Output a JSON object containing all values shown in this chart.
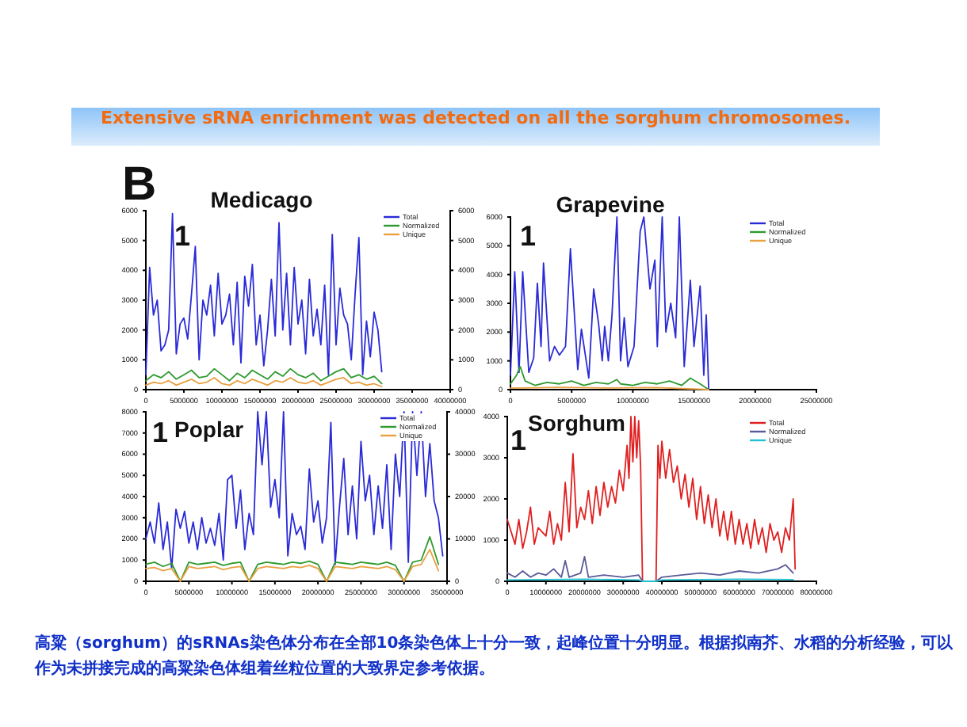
{
  "chart_data": [
    {
      "type": "other",
      "title": "Extensive sRNA enrichment was detected on all the sorghum chromosomes.",
      "annotations": [
        "B",
        "高粱（sorghum）的sRNAs染色体分布在全部10条染色体上十分一致，起峰位置十分明显。根据拟南芥、水稻的分析经验，可以作为未拼接完成的高粱染色体组着丝粒位置的大致界定参考依据。"
      ]
    },
    {
      "type": "line",
      "title": "Medicago",
      "annotations": [
        "1"
      ],
      "legend": "top right",
      "xlim": [
        0,
        40000000
      ],
      "xticks": [
        0,
        5000000,
        10000000,
        15000000,
        20000000,
        25000000,
        30000000,
        35000000,
        40000000
      ],
      "ylim": [
        0,
        6000
      ],
      "yticks": [
        0,
        1000,
        2000,
        3000,
        4000,
        5000,
        6000
      ],
      "y2lim": [
        0,
        6000
      ],
      "y2ticks": [
        0,
        1000,
        2000,
        3000,
        4000,
        5000,
        6000
      ],
      "series": [
        {
          "name": "Total",
          "color": "#2a2ad8",
          "x": [
            0,
            500000,
            1000000,
            1500000,
            2000000,
            2500000,
            3000000,
            3500000,
            4000000,
            4500000,
            5000000,
            5500000,
            6000000,
            6500000,
            7000000,
            7500000,
            8000000,
            8500000,
            9000000,
            9500000,
            10000000,
            10500000,
            11000000,
            11500000,
            12000000,
            12500000,
            13000000,
            13500000,
            14000000,
            14500000,
            15000000,
            15500000,
            16000000,
            16500000,
            17000000,
            17500000,
            18000000,
            18500000,
            19000000,
            19500000,
            20000000,
            20500000,
            21000000,
            21500000,
            22000000,
            22500000,
            23000000,
            23500000,
            24000000,
            24500000,
            25000000,
            25500000,
            26000000,
            26500000,
            27000000,
            27500000,
            28000000,
            28500000,
            29000000,
            29500000,
            30000000,
            30500000,
            31000000
          ],
          "values": [
            500,
            4100,
            2500,
            3000,
            1300,
            1500,
            2000,
            5900,
            1200,
            2200,
            2400,
            1700,
            3200,
            4800,
            1000,
            3000,
            2500,
            3500,
            1800,
            3900,
            2200,
            2500,
            3200,
            1500,
            3600,
            900,
            3800,
            2800,
            4200,
            1500,
            2500,
            800,
            2000,
            3700,
            1800,
            5600,
            2000,
            3900,
            1500,
            4100,
            2200,
            3000,
            1200,
            3700,
            1800,
            2700,
            1500,
            3500,
            500,
            5200,
            1500,
            3400,
            2500,
            2200,
            1000,
            3200,
            5100,
            500,
            2300,
            1100,
            2600,
            2000,
            600
          ]
        },
        {
          "name": "Normalized",
          "color": "#2e9a2e",
          "x": [
            0,
            1000000,
            2000000,
            3000000,
            4000000,
            5000000,
            6000000,
            7000000,
            8000000,
            9000000,
            10000000,
            11000000,
            12000000,
            13000000,
            14000000,
            15000000,
            16000000,
            17000000,
            18000000,
            19000000,
            20000000,
            21000000,
            22000000,
            23000000,
            24000000,
            25000000,
            26000000,
            27000000,
            28000000,
            29000000,
            30000000,
            31000000
          ],
          "values": [
            300,
            500,
            400,
            600,
            350,
            500,
            650,
            400,
            450,
            700,
            500,
            300,
            550,
            400,
            650,
            500,
            350,
            600,
            450,
            700,
            500,
            400,
            550,
            300,
            450,
            600,
            700,
            400,
            500,
            350,
            450,
            200
          ]
        },
        {
          "name": "Unique",
          "color": "#e8a040",
          "x": [
            0,
            1000000,
            2000000,
            3000000,
            4000000,
            5000000,
            6000000,
            7000000,
            8000000,
            9000000,
            10000000,
            11000000,
            12000000,
            13000000,
            14000000,
            15000000,
            16000000,
            17000000,
            18000000,
            19000000,
            20000000,
            21000000,
            22000000,
            23000000,
            24000000,
            25000000,
            26000000,
            27000000,
            28000000,
            29000000,
            30000000,
            31000000
          ],
          "values": [
            150,
            250,
            200,
            300,
            150,
            250,
            350,
            200,
            250,
            400,
            200,
            150,
            300,
            200,
            350,
            250,
            150,
            300,
            250,
            400,
            250,
            200,
            300,
            150,
            250,
            350,
            400,
            200,
            250,
            150,
            200,
            100
          ]
        }
      ]
    },
    {
      "type": "line",
      "title": "Grapevine",
      "annotations": [
        "1"
      ],
      "legend": "top right",
      "xlim": [
        0,
        25000000
      ],
      "xticks": [
        0,
        5000000,
        10000000,
        15000000,
        20000000,
        25000000
      ],
      "ylim": [
        0,
        6000
      ],
      "yticks": [
        0,
        1000,
        2000,
        3000,
        4000,
        5000,
        6000
      ],
      "series": [
        {
          "name": "Total",
          "color": "#2a2ad8",
          "x": [
            0,
            350000,
            700000,
            1000000,
            1500000,
            1900000,
            2200000,
            2500000,
            2700000,
            3200000,
            3600000,
            4000000,
            4500000,
            4900000,
            5200000,
            5500000,
            5800000,
            6400000,
            6800000,
            7200000,
            7500000,
            7700000,
            8000000,
            8300000,
            8700000,
            9000000,
            9300000,
            9600000,
            10100000,
            10600000,
            10900000,
            11400000,
            11800000,
            12000000,
            12400000,
            12700000,
            13100000,
            13500000,
            13800000,
            14200000,
            14700000,
            15000000,
            15500000,
            15800000,
            16000000,
            16200000
          ],
          "values": [
            500,
            4100,
            600,
            4100,
            600,
            1100,
            3700,
            1500,
            4400,
            1000,
            1500,
            1200,
            1500,
            4900,
            2800,
            700,
            2100,
            400,
            3500,
            2300,
            1000,
            2200,
            1000,
            2600,
            6000,
            1000,
            2500,
            800,
            1500,
            5500,
            6000,
            3500,
            4500,
            1500,
            6000,
            2000,
            3000,
            1800,
            6000,
            800,
            3800,
            1500,
            3600,
            500,
            2600,
            0
          ]
        },
        {
          "name": "Normalized",
          "color": "#2e9a2e",
          "x": [
            0,
            500000,
            800000,
            1200000,
            2000000,
            3000000,
            4000000,
            5000000,
            6000000,
            7000000,
            8000000,
            8700000,
            9000000,
            10000000,
            11000000,
            12000000,
            13000000,
            14000000,
            14700000,
            15500000,
            16200000
          ],
          "values": [
            200,
            500,
            800,
            300,
            150,
            250,
            200,
            300,
            150,
            250,
            200,
            350,
            200,
            150,
            250,
            200,
            300,
            150,
            400,
            200,
            0
          ]
        },
        {
          "name": "Unique",
          "color": "#e8a040",
          "x": [
            0,
            4000000,
            8000000,
            12000000,
            16200000
          ],
          "values": [
            50,
            80,
            60,
            70,
            0
          ]
        }
      ]
    },
    {
      "type": "line",
      "title": "Poplar",
      "annotations": [
        "1"
      ],
      "legend": "top right",
      "xlim": [
        0,
        35000000
      ],
      "xticks": [
        0,
        5000000,
        10000000,
        15000000,
        20000000,
        25000000,
        30000000,
        35000000
      ],
      "ylim": [
        0,
        8000
      ],
      "yticks": [
        0,
        1000,
        2000,
        3000,
        4000,
        5000,
        6000,
        7000,
        8000
      ],
      "y2lim": [
        0,
        40000
      ],
      "y2ticks": [
        0,
        10000,
        20000,
        30000,
        40000
      ],
      "series": [
        {
          "name": "Total",
          "color": "#2a2ad8",
          "x": [
            0,
            500000,
            1000000,
            1500000,
            2000000,
            2500000,
            3000000,
            3500000,
            4000000,
            4500000,
            5000000,
            5500000,
            6000000,
            6500000,
            7000000,
            7500000,
            8000000,
            8500000,
            9000000,
            9500000,
            10000000,
            10500000,
            11000000,
            11500000,
            12000000,
            12500000,
            13000000,
            13500000,
            14000000,
            14500000,
            15000000,
            15500000,
            16000000,
            16500000,
            17000000,
            17500000,
            18000000,
            18500000,
            19000000,
            19500000,
            20000000,
            20500000,
            21000000,
            21500000,
            22000000,
            22500000,
            23000000,
            23500000,
            24000000,
            24500000,
            25000000,
            25500000,
            26000000,
            26500000,
            27000000,
            27500000,
            28000000,
            28500000,
            29000000,
            29500000,
            30000000,
            30500000,
            31000000,
            31500000,
            32000000,
            32500000,
            33000000,
            33500000,
            34000000,
            34500000
          ],
          "values": [
            2000,
            2800,
            1800,
            3700,
            1500,
            2800,
            600,
            3400,
            2500,
            3300,
            1800,
            2800,
            1500,
            3000,
            1800,
            2500,
            1700,
            3200,
            1000,
            4800,
            5000,
            2500,
            4300,
            1500,
            3200,
            2200,
            8000,
            5500,
            8000,
            3500,
            4800,
            3000,
            8000,
            1200,
            3200,
            2200,
            2600,
            1500,
            5300,
            2800,
            3800,
            1800,
            3000,
            7500,
            800,
            3500,
            5800,
            2200,
            4500,
            2000,
            6600,
            3800,
            5000,
            2200,
            4500,
            2500,
            5500,
            1500,
            6000,
            4000,
            8000,
            900,
            8000,
            5000,
            8000,
            4000,
            6500,
            3800,
            3000,
            1200
          ]
        },
        {
          "name": "Normalized",
          "color": "#2e9a2e",
          "x": [
            0,
            1000000,
            2000000,
            3000000,
            4000000,
            5000000,
            6000000,
            7000000,
            8000000,
            9000000,
            10000000,
            11000000,
            12000000,
            13000000,
            14000000,
            15000000,
            16000000,
            17000000,
            18000000,
            19000000,
            20000000,
            21000000,
            22000000,
            23000000,
            24000000,
            25000000,
            26000000,
            27000000,
            28000000,
            29000000,
            30000000,
            31000000,
            32000000,
            33000000,
            34000000
          ],
          "values": [
            800,
            900,
            700,
            850,
            0,
            900,
            800,
            850,
            900,
            750,
            850,
            900,
            0,
            800,
            900,
            850,
            800,
            900,
            850,
            950,
            800,
            0,
            900,
            850,
            800,
            900,
            850,
            800,
            900,
            750,
            0,
            900,
            1000,
            2100,
            800
          ]
        },
        {
          "name": "Unique",
          "color": "#e8a040",
          "x": [
            0,
            1000000,
            2000000,
            3000000,
            4000000,
            5000000,
            6000000,
            7000000,
            8000000,
            9000000,
            10000000,
            11000000,
            12000000,
            13000000,
            14000000,
            15000000,
            16000000,
            17000000,
            18000000,
            19000000,
            20000000,
            21000000,
            22000000,
            23000000,
            24000000,
            25000000,
            26000000,
            27000000,
            28000000,
            29000000,
            30000000,
            31000000,
            32000000,
            33000000,
            34000000
          ],
          "values": [
            600,
            650,
            500,
            600,
            0,
            700,
            600,
            650,
            700,
            550,
            650,
            700,
            0,
            600,
            700,
            650,
            600,
            700,
            650,
            750,
            600,
            0,
            700,
            650,
            600,
            700,
            650,
            600,
            700,
            550,
            0,
            700,
            800,
            1500,
            500
          ]
        }
      ]
    },
    {
      "type": "line",
      "title": "Sorghum",
      "annotations": [
        "1"
      ],
      "legend": "top right",
      "xlim": [
        0,
        80000000
      ],
      "xticks": [
        0,
        10000000,
        20000000,
        30000000,
        40000000,
        50000000,
        60000000,
        70000000,
        80000000
      ],
      "ylim": [
        0,
        4000
      ],
      "yticks": [
        0,
        1000,
        2000,
        3000,
        4000
      ],
      "series": [
        {
          "name": "Total",
          "color": "#e02020",
          "x": [
            0,
            1000000,
            2000000,
            3000000,
            4000000,
            5000000,
            6000000,
            7000000,
            8000000,
            10000000,
            11000000,
            12000000,
            13000000,
            14000000,
            15000000,
            16000000,
            17000000,
            18000000,
            19000000,
            20000000,
            21000000,
            22000000,
            23000000,
            24000000,
            25000000,
            26000000,
            27000000,
            28000000,
            29000000,
            30000000,
            31000000,
            31500000,
            32000000,
            32500000,
            33000000,
            33500000,
            34000000,
            34500000,
            35000000,
            38500000,
            39000000,
            39500000,
            40000000,
            41000000,
            42000000,
            43000000,
            44000000,
            45000000,
            46000000,
            47000000,
            48000000,
            49000000,
            50000000,
            51000000,
            52000000,
            53000000,
            54000000,
            55000000,
            56000000,
            57000000,
            58000000,
            59000000,
            60000000,
            61000000,
            62000000,
            63000000,
            64000000,
            65000000,
            66000000,
            67000000,
            68000000,
            69000000,
            70000000,
            71000000,
            72000000,
            73000000,
            74000000,
            74500000
          ],
          "values": [
            1500,
            1200,
            900,
            1500,
            800,
            1200,
            1800,
            900,
            1300,
            1100,
            1700,
            900,
            1400,
            1000,
            2400,
            1200,
            3100,
            1300,
            1800,
            1500,
            2200,
            1400,
            2300,
            1600,
            2400,
            1800,
            2300,
            1900,
            2700,
            2200,
            3300,
            2500,
            4000,
            2900,
            4000,
            3000,
            3900,
            2800,
            0,
            0,
            3300,
            2500,
            3400,
            2500,
            3200,
            2400,
            2800,
            2000,
            2600,
            1800,
            2500,
            1500,
            2300,
            1400,
            2100,
            1300,
            2000,
            1100,
            1700,
            1000,
            1700,
            900,
            1500,
            900,
            1400,
            800,
            1500,
            900,
            1300,
            700,
            1400,
            1000,
            1200,
            700,
            1300,
            1000,
            2000,
            300
          ]
        },
        {
          "name": "Normalized",
          "color": "#5a5a9a",
          "x": [
            0,
            2000000,
            4000000,
            6000000,
            8000000,
            10000000,
            12000000,
            14000000,
            15000000,
            16000000,
            19000000,
            20000000,
            21000000,
            25000000,
            30000000,
            34000000,
            35000000,
            38500000,
            40000000,
            45000000,
            50000000,
            55000000,
            60000000,
            65000000,
            70000000,
            72000000,
            74000000
          ],
          "values": [
            200,
            100,
            250,
            100,
            200,
            150,
            300,
            100,
            500,
            100,
            200,
            600,
            100,
            150,
            100,
            150,
            0,
            0,
            100,
            150,
            200,
            150,
            250,
            200,
            300,
            400,
            200
          ]
        },
        {
          "name": "Unique",
          "color": "#20c0d0",
          "x": [
            0,
            20000000,
            34000000,
            35000000,
            38500000,
            40000000,
            60000000,
            74000000
          ],
          "values": [
            30,
            50,
            30,
            0,
            0,
            30,
            50,
            40
          ]
        }
      ]
    }
  ]
}
